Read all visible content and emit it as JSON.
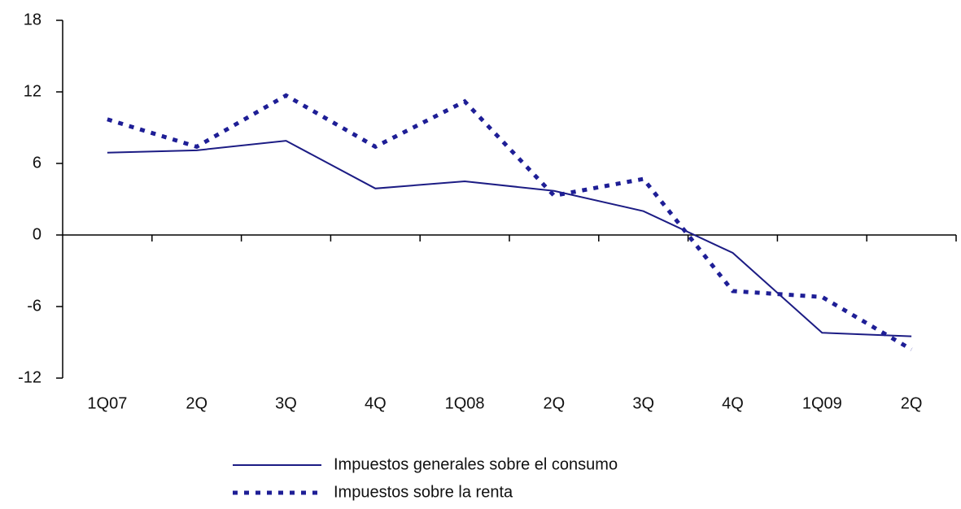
{
  "chart_data": {
    "type": "line",
    "categories": [
      "1Q07",
      "2Q",
      "3Q",
      "4Q",
      "1Q08",
      "2Q",
      "3Q",
      "4Q",
      "1Q09",
      "2Q"
    ],
    "series": [
      {
        "name": "Impuestos generales sobre el consumo",
        "color": "#1c1c84",
        "style": "solid",
        "values": [
          6.9,
          7.1,
          7.9,
          3.9,
          4.5,
          3.7,
          2.0,
          -1.5,
          -8.2,
          -8.5
        ]
      },
      {
        "name": "Impuestos sobre la renta",
        "color": "#1e1e96",
        "style": "dotted",
        "values": [
          9.7,
          7.4,
          11.7,
          7.4,
          11.2,
          3.3,
          4.7,
          -4.7,
          -5.2,
          -9.6
        ]
      }
    ],
    "ylim": [
      -12,
      18
    ],
    "yticks": [
      -12,
      -6,
      0,
      6,
      12,
      18
    ],
    "grid": false,
    "legend": "bottom"
  }
}
